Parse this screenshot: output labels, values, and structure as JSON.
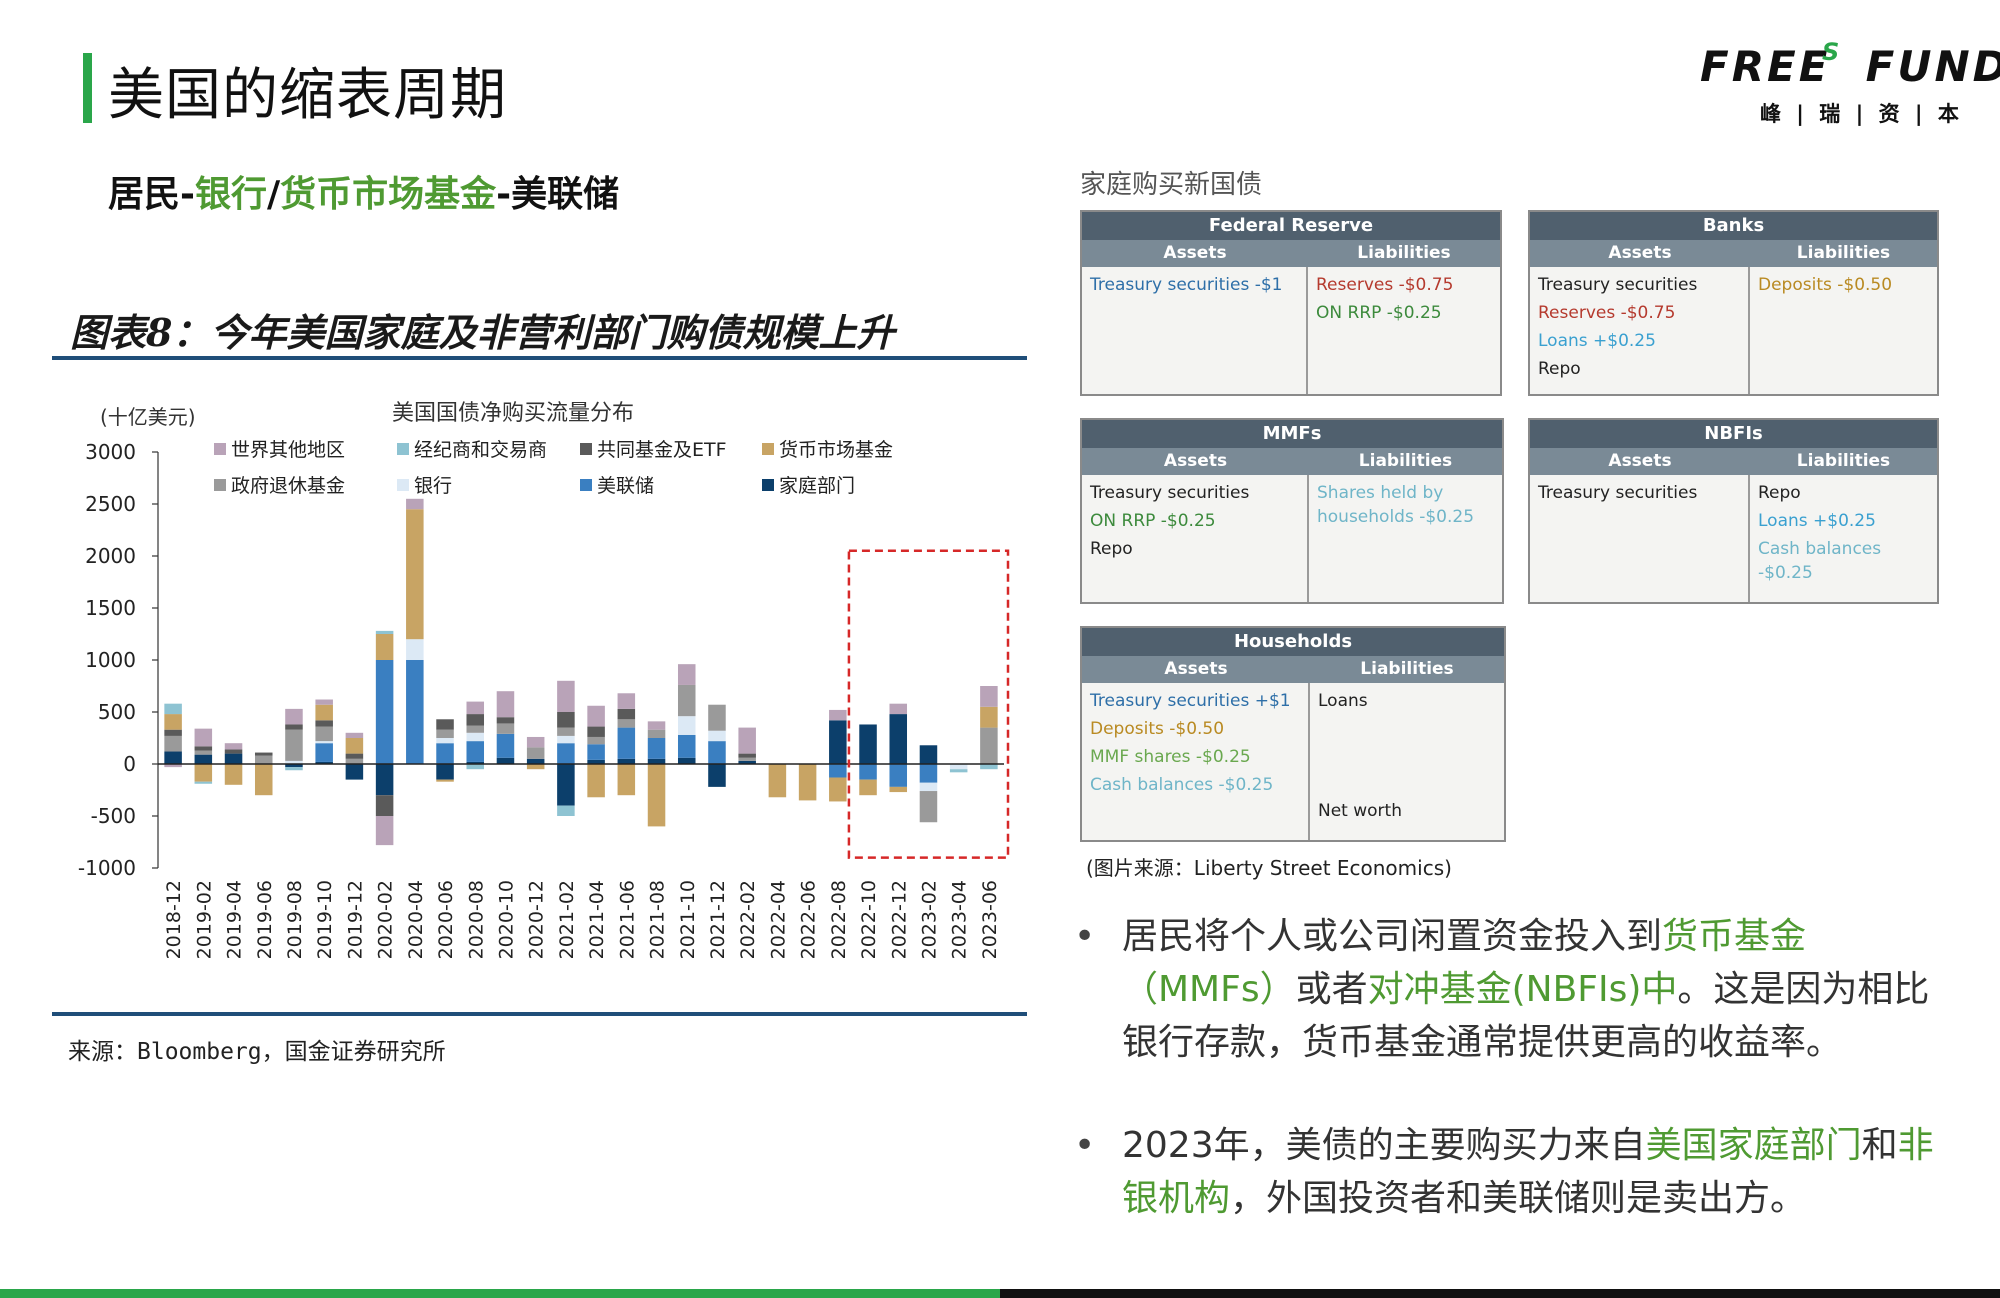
{
  "page": {
    "title": "美国的缩表周期",
    "subtitle": {
      "p1": "居民-",
      "p2": "银行",
      "p3": "/",
      "p4": "货币市场基金",
      "p5": "-美联储"
    },
    "figure_title": "图表8：今年美国家庭及非营利部门购债规模上升",
    "source_left": "来源：Bloomberg，国金证券研究所",
    "source_right": "(图片来源：Liberty Street Economics)"
  },
  "logo": {
    "text_free": "FREE",
    "text_s": "S",
    "text_fund": "FUND",
    "sub": "峰 | 瑞 | 资 | 本"
  },
  "colors": {
    "accent_green": "#2aa64a",
    "text_green": "#4f9a32",
    "rule_blue": "#1f4e79",
    "highlight_red": "#d62828"
  },
  "chart_data": {
    "type": "bar",
    "stacked": true,
    "title": "美国国债净购买流量分布",
    "unit_label": "(十亿美元)",
    "ylim": [
      -1000,
      3000
    ],
    "yticks": [
      3000,
      2500,
      2000,
      1500,
      1000,
      500,
      0,
      -500,
      -1000
    ],
    "legend_position": "top",
    "categories": [
      "2018-12",
      "2019-02",
      "2019-04",
      "2019-06",
      "2019-08",
      "2019-10",
      "2019-12",
      "2020-02",
      "2020-04",
      "2020-06",
      "2020-08",
      "2020-10",
      "2020-12",
      "2021-02",
      "2021-04",
      "2021-06",
      "2021-08",
      "2021-10",
      "2021-12",
      "2022-02",
      "2022-04",
      "2022-06",
      "2022-08",
      "2022-10",
      "2022-12",
      "2023-02",
      "2023-04",
      "2023-06"
    ],
    "highlight_range": [
      "2022-10",
      "2023-06"
    ],
    "series": [
      {
        "name": "家庭部门",
        "color": "#0c3f6b",
        "values": [
          120,
          90,
          100,
          0,
          -30,
          20,
          -150,
          -300,
          0,
          -150,
          20,
          60,
          50,
          -400,
          40,
          50,
          50,
          60,
          -220,
          30,
          0,
          0,
          420,
          380,
          480,
          180,
          0,
          0
        ]
      },
      {
        "name": "美联储",
        "color": "#3a7fc1",
        "values": [
          0,
          0,
          0,
          0,
          0,
          180,
          0,
          1000,
          1000,
          200,
          200,
          230,
          0,
          200,
          150,
          300,
          200,
          220,
          220,
          0,
          0,
          0,
          -130,
          -150,
          -220,
          -180,
          0,
          0
        ]
      },
      {
        "name": "银行",
        "color": "#dce9f5",
        "values": [
          0,
          0,
          0,
          0,
          30,
          20,
          0,
          0,
          200,
          50,
          80,
          0,
          0,
          70,
          0,
          0,
          0,
          180,
          100,
          0,
          0,
          0,
          0,
          0,
          0,
          -80,
          -50,
          0
        ]
      },
      {
        "name": "政府退休基金",
        "color": "#9a9a9a",
        "values": [
          150,
          40,
          0,
          80,
          300,
          140,
          50,
          0,
          0,
          80,
          70,
          100,
          110,
          80,
          70,
          80,
          80,
          300,
          250,
          30,
          0,
          0,
          0,
          0,
          0,
          -300,
          0,
          350
        ]
      },
      {
        "name": "共同基金及ETF",
        "color": "#5a5a5a",
        "values": [
          60,
          40,
          40,
          30,
          50,
          60,
          50,
          -200,
          0,
          100,
          110,
          60,
          0,
          150,
          100,
          100,
          0,
          0,
          0,
          40,
          0,
          0,
          0,
          0,
          0,
          0,
          0,
          0
        ]
      },
      {
        "name": "货币市场基金",
        "color": "#c8a464",
        "values": [
          150,
          -170,
          -200,
          -300,
          0,
          150,
          150,
          250,
          1250,
          -20,
          0,
          0,
          -50,
          0,
          -320,
          -300,
          -600,
          0,
          0,
          0,
          -320,
          -350,
          -230,
          -150,
          -50,
          0,
          0,
          200
        ]
      },
      {
        "name": "经纪商和交易商",
        "color": "#8ec3d2",
        "values": [
          100,
          -20,
          0,
          0,
          -30,
          0,
          0,
          30,
          0,
          0,
          -50,
          0,
          0,
          -100,
          0,
          0,
          0,
          0,
          0,
          0,
          0,
          0,
          0,
          0,
          0,
          0,
          -30,
          -50
        ]
      },
      {
        "name": "世界其他地区",
        "color": "#b9a3b8",
        "values": [
          -30,
          170,
          60,
          0,
          150,
          50,
          50,
          -280,
          100,
          0,
          120,
          250,
          100,
          300,
          200,
          150,
          80,
          200,
          0,
          250,
          0,
          0,
          100,
          0,
          100,
          0,
          0,
          200
        ]
      }
    ],
    "legend_rows": [
      [
        "世界其他地区",
        "经纪商和交易商",
        "共同基金及ETF",
        "货币市场基金"
      ],
      [
        "政府退休基金",
        "银行",
        "美联储",
        "家庭部门"
      ]
    ]
  },
  "balance_sheets": {
    "heading": "家庭购买新国债",
    "assets_label": "Assets",
    "liabilities_label": "Liabilities",
    "fed": {
      "title": "Federal Reserve",
      "assets": [
        {
          "text": "Treasury securities -$1",
          "color": "blue"
        }
      ],
      "liabilities": [
        {
          "text": "Reserves -$0.75",
          "color": "red"
        },
        {
          "text": "ON RRP -$0.25",
          "color": "green"
        }
      ]
    },
    "banks": {
      "title": "Banks",
      "assets": [
        {
          "text": "Treasury securities",
          "color": "dark"
        },
        {
          "text": "Reserves -$0.75",
          "color": "red"
        },
        {
          "text": "Loans +$0.25",
          "color": "lblue"
        },
        {
          "text": "Repo",
          "color": "dark"
        }
      ],
      "liabilities": [
        {
          "text": "Deposits -$0.50",
          "color": "gold"
        }
      ]
    },
    "mmfs": {
      "title": "MMFs",
      "assets": [
        {
          "text": "Treasury securities",
          "color": "dark"
        },
        {
          "text": "ON RRP -$0.25",
          "color": "green"
        },
        {
          "text": "Repo",
          "color": "dark"
        }
      ],
      "liabilities": [
        {
          "text": "Shares held by households -$0.25",
          "color": "lteal"
        }
      ]
    },
    "nbfis": {
      "title": "NBFIs",
      "assets": [
        {
          "text": "Treasury securities",
          "color": "dark"
        }
      ],
      "liabilities": [
        {
          "text": "Repo",
          "color": "dark"
        },
        {
          "text": "Loans +$0.25",
          "color": "lblue"
        },
        {
          "text": "Cash balances -$0.25",
          "color": "lteal"
        }
      ]
    },
    "households": {
      "title": "Households",
      "assets": [
        {
          "text": "Treasury securities +$1",
          "color": "blue"
        },
        {
          "text": "Deposits -$0.50",
          "color": "gold"
        },
        {
          "text": "MMF shares -$0.25",
          "color": "lgreen"
        },
        {
          "text": "Cash balances -$0.25",
          "color": "lteal"
        }
      ],
      "liabilities": [
        {
          "text": "Loans",
          "color": "dark"
        },
        {
          "text": "Net worth",
          "color": "dark"
        }
      ]
    }
  },
  "bullets": [
    {
      "p1": "居民将个人或公司闲置资金投入到",
      "g1": "货币基金（MMFs）",
      "p2": "或者",
      "g2": "对冲基金(NBFIs)中",
      "p3": "。这是因为相比银行存款，货币基金通常提供更高的收益率。"
    },
    {
      "p1": "2023年，美债的主要购买力来自",
      "g1": "美国家庭部门",
      "p2": "和",
      "g2": "非银机构",
      "p3": "，外国投资者和美联储则是卖出方。"
    }
  ]
}
